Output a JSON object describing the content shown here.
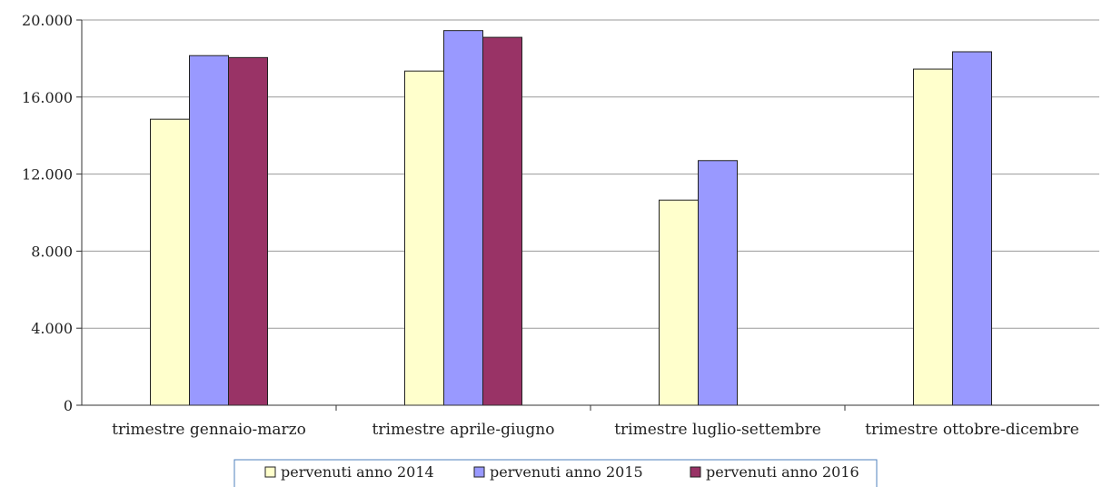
{
  "chart_data": {
    "type": "bar",
    "categories": [
      "trimestre gennaio-marzo",
      "trimestre aprile-giugno",
      "trimestre luglio-settembre",
      "trimestre ottobre-dicembre"
    ],
    "series": [
      {
        "name": "pervenuti anno 2014",
        "color": "#FFFFCC",
        "values": [
          14850,
          17350,
          10650,
          17450
        ]
      },
      {
        "name": "pervenuti anno 2015",
        "color": "#9999FF",
        "values": [
          18150,
          19450,
          12700,
          18350
        ]
      },
      {
        "name": "pervenuti anno 2016",
        "color": "#993366",
        "values": [
          18050,
          19100,
          null,
          null
        ]
      }
    ],
    "ylim": [
      0,
      20000
    ],
    "yticks": [
      0,
      4000,
      8000,
      12000,
      16000,
      20000
    ],
    "ytick_labels": [
      "0",
      "4.000",
      "8.000",
      "12.000",
      "16.000",
      "20.000"
    ],
    "grid": true,
    "legend_position": "bottom",
    "title": "",
    "xlabel": "",
    "ylabel": ""
  }
}
